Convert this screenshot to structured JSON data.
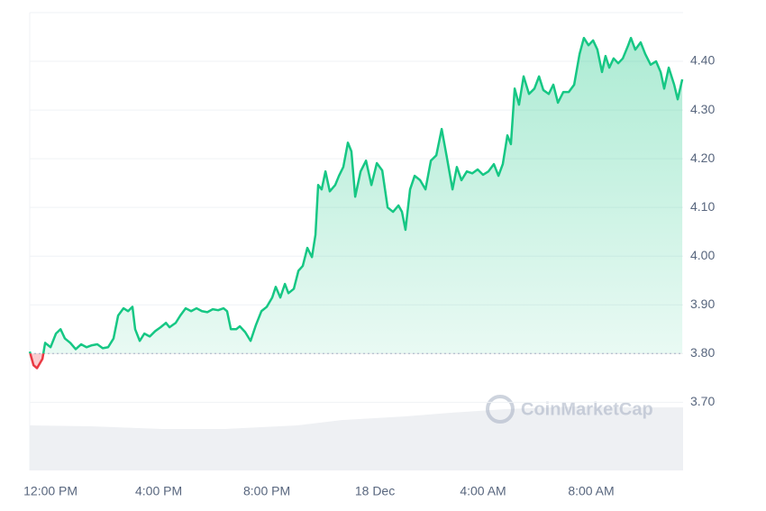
{
  "chart_data": {
    "type": "line",
    "watermark": "CoinMarketCap",
    "x": [
      -0.77,
      -0.63,
      -0.5,
      -0.3,
      -0.2,
      0,
      0.2,
      0.37,
      0.53,
      0.73,
      0.93,
      1.13,
      1.33,
      1.53,
      1.73,
      1.93,
      2.13,
      2.33,
      2.5,
      2.7,
      2.87,
      3.03,
      3.13,
      3.3,
      3.47,
      3.67,
      3.87,
      4.07,
      4.27,
      4.4,
      4.63,
      4.8,
      5,
      5.2,
      5.4,
      5.6,
      5.8,
      6,
      6.2,
      6.4,
      6.53,
      6.67,
      6.87,
      7,
      7.2,
      7.4,
      7.6,
      7.8,
      8,
      8.2,
      8.33,
      8.5,
      8.67,
      8.8,
      9,
      9.17,
      9.33,
      9.5,
      9.67,
      9.8,
      9.9,
      10.03,
      10.17,
      10.33,
      10.53,
      10.67,
      10.83,
      11,
      11.13,
      11.27,
      11.47,
      11.67,
      11.87,
      12.07,
      12.27,
      12.47,
      12.67,
      12.87,
      13,
      13.13,
      13.3,
      13.47,
      13.67,
      13.87,
      14.07,
      14.27,
      14.47,
      14.67,
      14.87,
      15.03,
      15.2,
      15.4,
      15.6,
      15.8,
      16,
      16.2,
      16.4,
      16.57,
      16.73,
      16.9,
      17.03,
      17.17,
      17.33,
      17.5,
      17.7,
      17.9,
      18.07,
      18.23,
      18.43,
      18.6,
      18.77,
      18.97,
      19.17,
      19.37,
      19.57,
      19.73,
      19.9,
      20.07,
      20.23,
      20.4,
      20.53,
      20.67,
      20.83,
      21,
      21.17,
      21.37,
      21.47,
      21.63,
      21.83,
      22,
      22.2,
      22.4,
      22.57,
      22.7,
      22.87,
      23.07,
      23.2,
      23.37
    ],
    "series": [
      {
        "color": "#16c784",
        "below_color": "#ea3943",
        "values": [
          3.804,
          3.776,
          3.77,
          3.789,
          3.822,
          3.813,
          3.841,
          3.85,
          3.831,
          3.822,
          3.809,
          3.819,
          3.813,
          3.817,
          3.819,
          3.811,
          3.813,
          3.831,
          3.878,
          3.893,
          3.887,
          3.896,
          3.85,
          3.826,
          3.841,
          3.835,
          3.846,
          3.854,
          3.863,
          3.854,
          3.863,
          3.878,
          3.893,
          3.887,
          3.893,
          3.887,
          3.885,
          3.891,
          3.889,
          3.893,
          3.887,
          3.85,
          3.85,
          3.856,
          3.844,
          3.826,
          3.859,
          3.887,
          3.896,
          3.915,
          3.937,
          3.915,
          3.943,
          3.924,
          3.933,
          3.97,
          3.98,
          4.017,
          3.998,
          4.044,
          4.146,
          4.137,
          4.174,
          4.133,
          4.146,
          4.165,
          4.183,
          4.233,
          4.215,
          4.122,
          4.174,
          4.196,
          4.146,
          4.191,
          4.176,
          4.1,
          4.091,
          4.104,
          4.091,
          4.054,
          4.137,
          4.165,
          4.156,
          4.137,
          4.196,
          4.207,
          4.261,
          4.2,
          4.137,
          4.183,
          4.156,
          4.174,
          4.17,
          4.178,
          4.167,
          4.174,
          4.189,
          4.165,
          4.189,
          4.248,
          4.23,
          4.344,
          4.311,
          4.369,
          4.333,
          4.344,
          4.369,
          4.341,
          4.333,
          4.352,
          4.315,
          4.337,
          4.337,
          4.352,
          4.415,
          4.448,
          4.433,
          4.443,
          4.424,
          4.378,
          4.411,
          4.387,
          4.406,
          4.396,
          4.406,
          4.433,
          4.448,
          4.424,
          4.439,
          4.415,
          4.393,
          4.4,
          4.378,
          4.344,
          4.387,
          4.352,
          4.322,
          4.363
        ]
      }
    ],
    "baseline": 3.8,
    "xlim": [
      -0.77,
      23.4
    ],
    "xticks": [
      {
        "value": 0,
        "label": "12:00 PM"
      },
      {
        "value": 4,
        "label": "4:00 PM"
      },
      {
        "value": 8,
        "label": "8:00 PM"
      },
      {
        "value": 12,
        "label": "18 Dec"
      },
      {
        "value": 16,
        "label": "4:00 AM"
      },
      {
        "value": 20,
        "label": "8:00 AM"
      }
    ],
    "ylim": [
      3.56,
      4.5
    ],
    "yticks": [
      {
        "value": 3.7,
        "label": "3.70"
      },
      {
        "value": 3.8,
        "label": "3.80"
      },
      {
        "value": 3.9,
        "label": "3.90"
      },
      {
        "value": 4.0,
        "label": "4.00"
      },
      {
        "value": 4.1,
        "label": "4.10"
      },
      {
        "value": 4.2,
        "label": "4.20"
      },
      {
        "value": 4.3,
        "label": "4.30"
      },
      {
        "value": 4.4,
        "label": "4.40"
      }
    ],
    "grid": true
  }
}
